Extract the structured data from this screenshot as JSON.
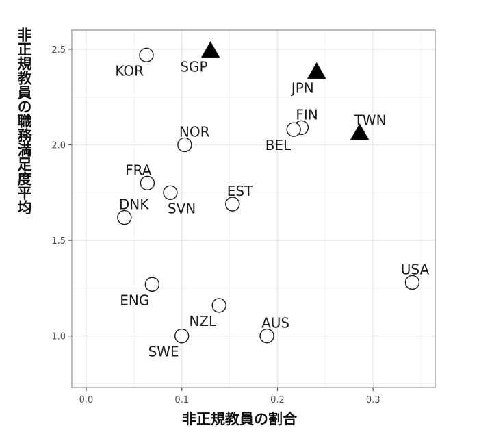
{
  "chart_data": {
    "type": "scatter",
    "xlabel": "非正規教員の割合",
    "ylabel": "非正規教員の職務満足度平均",
    "xlim": [
      -0.015,
      0.365
    ],
    "ylim": [
      0.73,
      2.6
    ],
    "grid": true,
    "x_ticks": [
      {
        "value": 0.0,
        "label": "0.0"
      },
      {
        "value": 0.1,
        "label": "0.1"
      },
      {
        "value": 0.2,
        "label": "0.2"
      },
      {
        "value": 0.3,
        "label": "0.3"
      }
    ],
    "y_ticks": [
      {
        "value": 1.0,
        "label": "1.0"
      },
      {
        "value": 1.5,
        "label": "1.5"
      },
      {
        "value": 2.0,
        "label": "2.0"
      },
      {
        "value": 2.5,
        "label": "2.5"
      }
    ],
    "colors": {
      "panel_border": "#999999",
      "grid_major": "#e6e6e6",
      "grid_minor": "#f2f2f2",
      "marker_fill_circle": "#ffffff",
      "marker_edge": "#1a1a1a",
      "marker_fill_triangle": "#000000"
    },
    "points": [
      {
        "label": "KOR",
        "x": 0.063,
        "y": 2.47,
        "shape": "circle",
        "label_pos": "bottom-left"
      },
      {
        "label": "SGP",
        "x": 0.13,
        "y": 2.49,
        "shape": "triangle",
        "label_pos": "bottom-left"
      },
      {
        "label": "JPN",
        "x": 0.241,
        "y": 2.38,
        "shape": "triangle",
        "label_pos": "bottom-left"
      },
      {
        "label": "FIN",
        "x": 0.225,
        "y": 2.09,
        "shape": "circle",
        "label_pos": "top-right"
      },
      {
        "label": "BEL",
        "x": 0.217,
        "y": 2.08,
        "shape": "circle",
        "label_pos": "bottom-left"
      },
      {
        "label": "TWN",
        "x": 0.286,
        "y": 2.06,
        "shape": "triangle",
        "label_pos": "top-right"
      },
      {
        "label": "NOR",
        "x": 0.103,
        "y": 2.0,
        "shape": "circle",
        "label_pos": "top-right"
      },
      {
        "label": "FRA",
        "x": 0.064,
        "y": 1.8,
        "shape": "circle",
        "label_pos": "top-left"
      },
      {
        "label": "SVN",
        "x": 0.088,
        "y": 1.75,
        "shape": "circle",
        "label_pos": "bottom-right"
      },
      {
        "label": "EST",
        "x": 0.153,
        "y": 1.69,
        "shape": "circle",
        "label_pos": "top-right"
      },
      {
        "label": "DNK",
        "x": 0.04,
        "y": 1.62,
        "shape": "circle",
        "label_pos": "top-right"
      },
      {
        "label": "USA",
        "x": 0.341,
        "y": 1.28,
        "shape": "circle",
        "label_pos": "top"
      },
      {
        "label": "ENG",
        "x": 0.069,
        "y": 1.27,
        "shape": "circle",
        "label_pos": "bottom-left"
      },
      {
        "label": "NZL",
        "x": 0.139,
        "y": 1.16,
        "shape": "circle",
        "label_pos": "bottom-left"
      },
      {
        "label": "SWE",
        "x": 0.1,
        "y": 1.0,
        "shape": "circle",
        "label_pos": "bottom-left"
      },
      {
        "label": "AUS",
        "x": 0.189,
        "y": 1.0,
        "shape": "circle",
        "label_pos": "top-right"
      }
    ]
  }
}
